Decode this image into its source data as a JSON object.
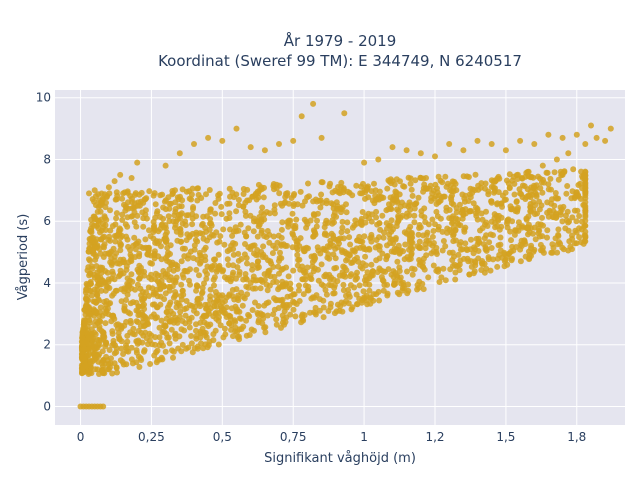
{
  "chart_data": {
    "type": "scatter",
    "title_line1": "År 1979 - 2019",
    "title_line2": "Koordinat (Sweref 99 TM): E 344749, N 6240517",
    "xlabel": "Signifikant våghöjd (m)",
    "ylabel": "Vågperiod (s)",
    "xlim": [
      -0.09,
      1.92
    ],
    "ylim": [
      -0.6,
      10.25
    ],
    "x_ticks": [
      0,
      0.25,
      0.5,
      0.75,
      1,
      1.25,
      1.5,
      1.75
    ],
    "x_tick_labels": [
      "0",
      "0,25",
      "0,5",
      "0,75",
      "1",
      "1,2",
      "1,5",
      "1,8"
    ],
    "y_ticks": [
      0,
      2,
      4,
      6,
      8,
      10
    ],
    "y_tick_labels": [
      "0",
      "2",
      "4",
      "6",
      "8",
      "10"
    ],
    "marker_color": "#d4a221",
    "plot_bg": "#e5e5ef",
    "grid_color": "#ffffff",
    "grid": true,
    "legend": "none",
    "points_note": "dense cloud sampled below",
    "points": [
      [
        0.0,
        0.0
      ],
      [
        0.01,
        0.0
      ],
      [
        0.02,
        0.0
      ],
      [
        0.03,
        0.0
      ],
      [
        0.04,
        0.0
      ],
      [
        0.05,
        0.0
      ],
      [
        0.06,
        0.0
      ],
      [
        0.07,
        0.0
      ],
      [
        0.08,
        0.0
      ],
      [
        0.01,
        1.6
      ],
      [
        0.02,
        1.3
      ],
      [
        0.03,
        1.1
      ],
      [
        0.04,
        2.2
      ],
      [
        0.05,
        3.1
      ],
      [
        0.06,
        1.2
      ],
      [
        0.07,
        4.5
      ],
      [
        0.08,
        5.8
      ],
      [
        0.09,
        6.6
      ],
      [
        0.03,
        6.9
      ],
      [
        0.05,
        7.0
      ],
      [
        0.07,
        6.5
      ],
      [
        0.1,
        7.1
      ],
      [
        0.12,
        7.3
      ],
      [
        0.14,
        7.5
      ],
      [
        0.15,
        6.9
      ],
      [
        0.18,
        7.4
      ],
      [
        0.02,
        3.8
      ],
      [
        0.03,
        3.0
      ],
      [
        0.04,
        2.5
      ],
      [
        0.06,
        1.9
      ],
      [
        0.08,
        1.5
      ],
      [
        0.1,
        1.2
      ],
      [
        0.12,
        1.4
      ],
      [
        0.15,
        1.7
      ],
      [
        0.18,
        1.9
      ],
      [
        0.2,
        2.1
      ],
      [
        0.25,
        2.3
      ],
      [
        0.3,
        2.6
      ],
      [
        0.35,
        2.9
      ],
      [
        0.4,
        3.1
      ],
      [
        0.45,
        3.3
      ],
      [
        0.5,
        3.6
      ],
      [
        0.55,
        3.8
      ],
      [
        0.6,
        4.0
      ],
      [
        0.65,
        4.1
      ],
      [
        0.7,
        4.3
      ],
      [
        0.75,
        4.4
      ],
      [
        0.8,
        4.5
      ],
      [
        0.85,
        4.6
      ],
      [
        0.9,
        4.8
      ],
      [
        0.95,
        4.9
      ],
      [
        1.0,
        5.1
      ],
      [
        1.05,
        5.2
      ],
      [
        1.1,
        5.4
      ],
      [
        1.15,
        5.6
      ],
      [
        1.2,
        5.8
      ],
      [
        1.25,
        5.9
      ],
      [
        1.3,
        6.1
      ],
      [
        1.35,
        6.2
      ],
      [
        1.4,
        6.4
      ],
      [
        1.45,
        6.6
      ],
      [
        1.5,
        6.7
      ],
      [
        1.55,
        6.9
      ],
      [
        1.6,
        7.1
      ],
      [
        1.65,
        7.2
      ],
      [
        1.7,
        7.5
      ],
      [
        0.2,
        7.9
      ],
      [
        0.3,
        7.8
      ],
      [
        0.35,
        8.2
      ],
      [
        0.4,
        8.5
      ],
      [
        0.45,
        8.7
      ],
      [
        0.5,
        8.6
      ],
      [
        0.55,
        9.0
      ],
      [
        0.6,
        8.4
      ],
      [
        0.65,
        8.3
      ],
      [
        0.7,
        8.5
      ],
      [
        0.75,
        8.6
      ],
      [
        0.78,
        9.4
      ],
      [
        0.82,
        9.8
      ],
      [
        0.85,
        8.7
      ],
      [
        0.93,
        9.5
      ],
      [
        1.0,
        7.9
      ],
      [
        1.05,
        8.0
      ],
      [
        1.1,
        8.4
      ],
      [
        1.15,
        8.3
      ],
      [
        1.2,
        8.2
      ],
      [
        1.25,
        8.1
      ],
      [
        1.3,
        8.5
      ],
      [
        1.35,
        8.3
      ],
      [
        1.4,
        8.6
      ],
      [
        1.45,
        8.5
      ],
      [
        1.5,
        8.3
      ],
      [
        1.55,
        8.6
      ],
      [
        1.6,
        8.5
      ],
      [
        1.65,
        8.8
      ],
      [
        1.7,
        8.7
      ],
      [
        1.75,
        8.8
      ],
      [
        1.8,
        9.1
      ],
      [
        1.82,
        8.7
      ],
      [
        1.85,
        8.6
      ],
      [
        1.87,
        9.0
      ],
      [
        1.78,
        8.5
      ],
      [
        1.72,
        8.2
      ],
      [
        1.68,
        8.0
      ],
      [
        1.63,
        7.8
      ],
      [
        1.58,
        7.6
      ]
    ]
  }
}
